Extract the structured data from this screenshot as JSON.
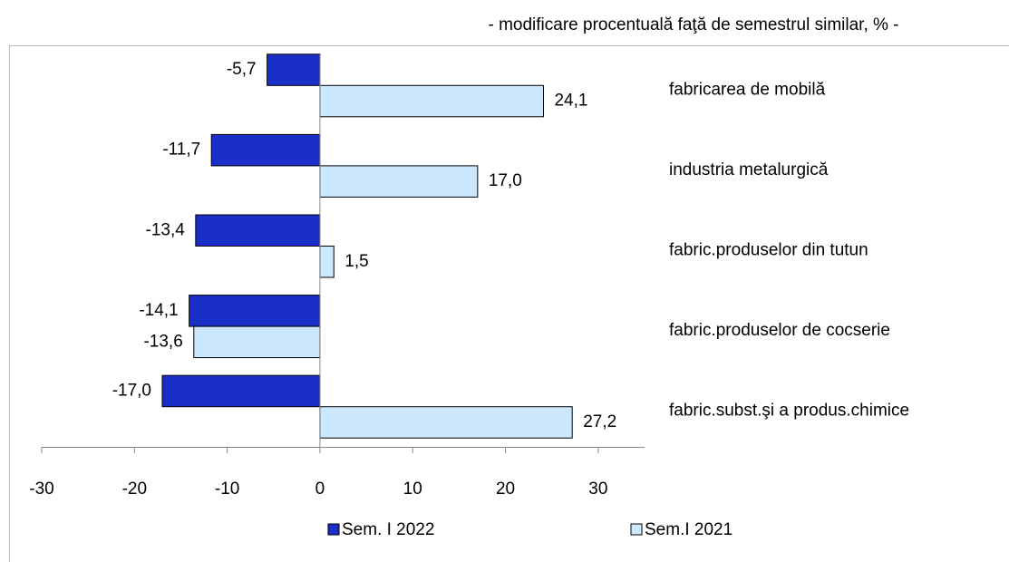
{
  "chart_data": {
    "type": "bar",
    "orientation": "horizontal",
    "subtitle": "- modificare procentuală faţă de semestrul similar, % -",
    "categories": [
      "fabricarea de mobilă",
      "industria metalurgică",
      "fabric.produselor din tutun",
      "fabric.produselor de cocserie",
      "fabric.subst.şi a produs.chimice"
    ],
    "series": [
      {
        "name": "Sem. I 2022",
        "color": "#1a2ec8",
        "values": [
          -5.7,
          -11.7,
          -13.4,
          -14.1,
          -17.0
        ],
        "value_labels": [
          "-5,7",
          "-11,7",
          "-13,4",
          "-14,1",
          "-17,0"
        ]
      },
      {
        "name": "Sem.I 2021",
        "color": "#cce8ff",
        "values": [
          24.1,
          17.0,
          1.5,
          -13.6,
          27.2
        ],
        "value_labels": [
          "24,1",
          "17,0",
          "1,5",
          "-13,6",
          "27,2"
        ]
      }
    ],
    "xlim": [
      -30,
      35
    ],
    "xticks": [
      -30,
      -20,
      -10,
      0,
      10,
      20,
      30
    ],
    "legend": "bottom"
  }
}
